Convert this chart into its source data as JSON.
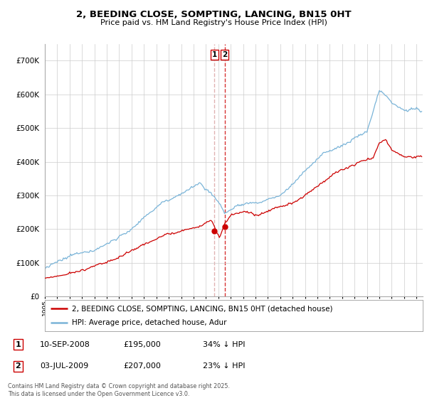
{
  "title": "2, BEEDING CLOSE, SOMPTING, LANCING, BN15 0HT",
  "subtitle": "Price paid vs. HM Land Registry's House Price Index (HPI)",
  "hpi_color": "#7ab4d8",
  "price_color": "#cc0000",
  "vline1_color": "#ccbbbb",
  "vline2_color": "#cc0000",
  "sale1_x": 2008.69,
  "sale1_y": 195000,
  "sale1_label": "1",
  "sale2_x": 2009.51,
  "sale2_y": 207000,
  "sale2_label": "2",
  "legend_line1": "2, BEEDING CLOSE, SOMPTING, LANCING, BN15 0HT (detached house)",
  "legend_line2": "HPI: Average price, detached house, Adur",
  "table_row1": [
    "1",
    "10-SEP-2008",
    "£195,000",
    "34% ↓ HPI"
  ],
  "table_row2": [
    "2",
    "03-JUL-2009",
    "£207,000",
    "23% ↓ HPI"
  ],
  "footnote": "Contains HM Land Registry data © Crown copyright and database right 2025.\nThis data is licensed under the Open Government Licence v3.0.",
  "background_color": "#ffffff",
  "grid_color": "#cccccc",
  "xlim_start": 1995.0,
  "xlim_end": 2025.5,
  "ylim": [
    0,
    750000
  ],
  "yticks": [
    0,
    100000,
    200000,
    300000,
    400000,
    500000,
    600000,
    700000
  ],
  "ytick_labels": [
    "£0",
    "£100K",
    "£200K",
    "£300K",
    "£400K",
    "£500K",
    "£600K",
    "£700K"
  ]
}
